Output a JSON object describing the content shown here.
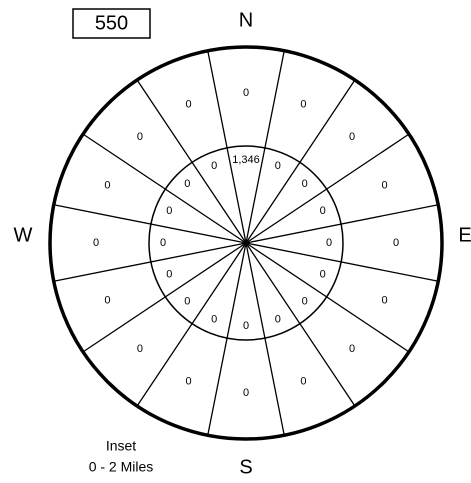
{
  "box_label": "550",
  "compass": {
    "north": "N",
    "east": "E",
    "south": "S",
    "west": "W"
  },
  "inset": {
    "line1": "Inset",
    "line2": "0 - 2 Miles"
  },
  "inner_values": [
    "1,346",
    "0",
    "0",
    "0",
    "0",
    "0",
    "0",
    "0",
    "0",
    "0",
    "0",
    "0",
    "0",
    "0",
    "0",
    "0"
  ],
  "outer_values": [
    "0",
    "0",
    "0",
    "0",
    "0",
    "0",
    "0",
    "0",
    "0",
    "0",
    "0",
    "0",
    "0",
    "0",
    "0",
    "0"
  ]
}
